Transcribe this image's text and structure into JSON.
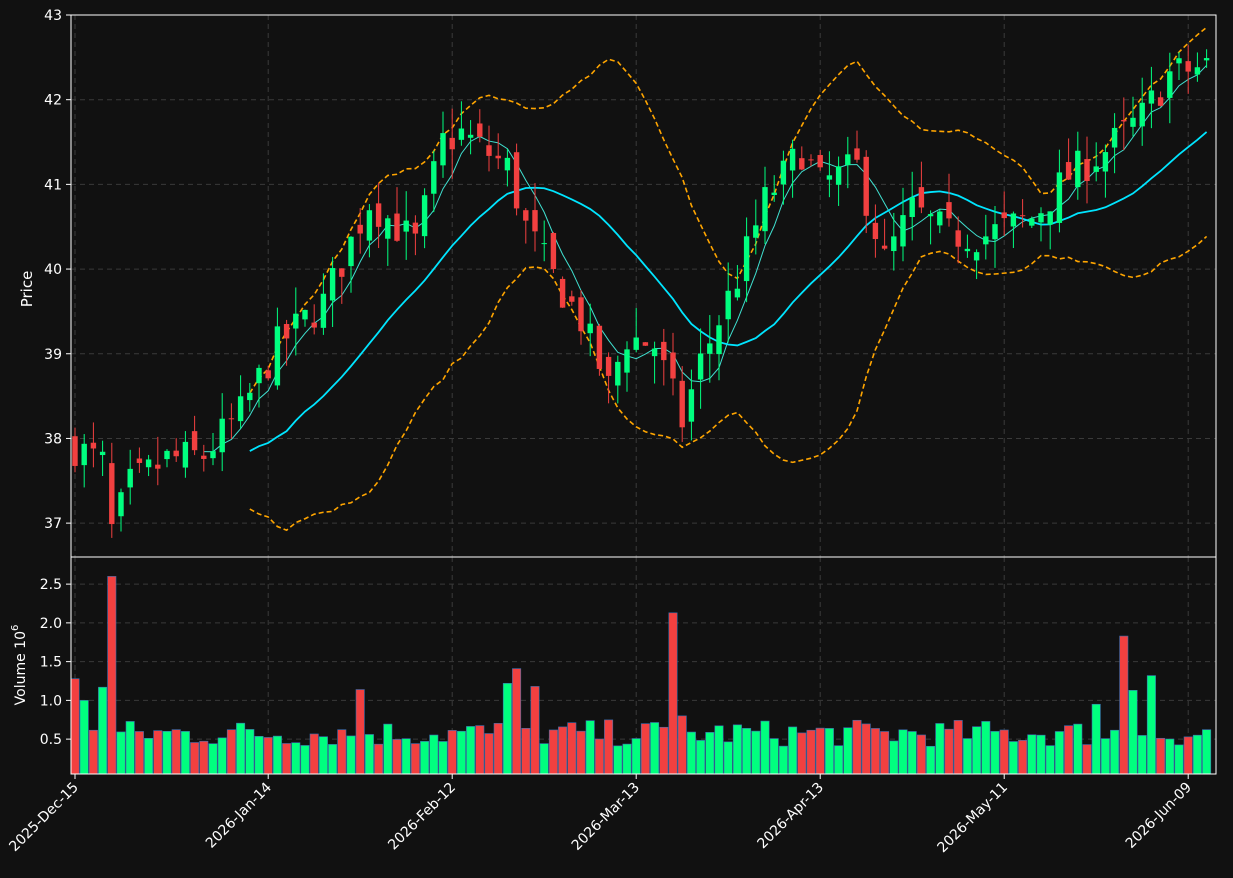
{
  "colors": {
    "background": "#111111",
    "up": "#00ff7f",
    "down": "#f24040",
    "volume_edge": "#3b6fb0",
    "sma_fast": "#40e0d0",
    "sma_slow": "#00e5ff",
    "bollinger": "#ffa500",
    "grid": "#3a3a3a",
    "frame": "#ffffff"
  },
  "chart_data": {
    "type": "candlestick",
    "ylabel": "Price",
    "volume_label": "Volume  10",
    "volume_exponent": "6",
    "ylim": [
      36.6,
      43.0
    ],
    "volume_ylim": [
      0.05,
      2.85
    ],
    "yticks": [
      "37",
      "38",
      "39",
      "40",
      "41",
      "42",
      "43"
    ],
    "volume_yticks": [
      "0.5",
      "1.0",
      "1.5",
      "2.0",
      "2.5"
    ],
    "xtick_labels": [
      {
        "label": "2025-Dec-15",
        "index": 0
      },
      {
        "label": "2026-Jan-14",
        "index": 21
      },
      {
        "label": "2026-Feb-12",
        "index": 41
      },
      {
        "label": "2026-Mar-13",
        "index": 61
      },
      {
        "label": "2026-Apr-13",
        "index": 81
      },
      {
        "label": "2026-May-11",
        "index": 101
      },
      {
        "label": "2026-Jun-09",
        "index": 121
      }
    ],
    "grid": true,
    "indicators": [
      "SMA (5)",
      "SMA (20)",
      "Bollinger Bands (20, 2)"
    ],
    "ohlc_anchors": [
      [
        0,
        37.9
      ],
      [
        3,
        37.7
      ],
      [
        4,
        36.9
      ],
      [
        6,
        37.45
      ],
      [
        10,
        37.75
      ],
      [
        14,
        37.8
      ],
      [
        18,
        38.3
      ],
      [
        22,
        39.1
      ],
      [
        27,
        39.6
      ],
      [
        32,
        40.8
      ],
      [
        37,
        40.3
      ],
      [
        40,
        41.5
      ],
      [
        42,
        41.6
      ],
      [
        47,
        41.2
      ],
      [
        49,
        40.5
      ],
      [
        52,
        39.9
      ],
      [
        55,
        39.4
      ],
      [
        58,
        38.6
      ],
      [
        60,
        39.2
      ],
      [
        63,
        39.1
      ],
      [
        66,
        38.2
      ],
      [
        68,
        38.9
      ],
      [
        72,
        39.9
      ],
      [
        75,
        40.8
      ],
      [
        79,
        41.4
      ],
      [
        81,
        41.0
      ],
      [
        85,
        41.2
      ],
      [
        88,
        40.1
      ],
      [
        91,
        40.7
      ],
      [
        95,
        40.4
      ],
      [
        99,
        40.4
      ],
      [
        104,
        40.6
      ],
      [
        108,
        41.1
      ],
      [
        112,
        41.4
      ],
      [
        116,
        41.8
      ],
      [
        119,
        42.3
      ],
      [
        123,
        42.4
      ]
    ],
    "volume_spikes": [
      {
        "index": 0,
        "value": 1.28
      },
      {
        "index": 1,
        "value": 1.0
      },
      {
        "index": 3,
        "value": 1.17
      },
      {
        "index": 4,
        "value": 2.6
      },
      {
        "index": 31,
        "value": 1.14
      },
      {
        "index": 47,
        "value": 1.22
      },
      {
        "index": 48,
        "value": 1.41
      },
      {
        "index": 50,
        "value": 1.18
      },
      {
        "index": 65,
        "value": 2.13
      },
      {
        "index": 66,
        "value": 0.8
      },
      {
        "index": 111,
        "value": 0.95
      },
      {
        "index": 114,
        "value": 1.83
      },
      {
        "index": 115,
        "value": 1.13
      },
      {
        "index": 117,
        "value": 1.32
      }
    ],
    "candle_count": 124
  }
}
